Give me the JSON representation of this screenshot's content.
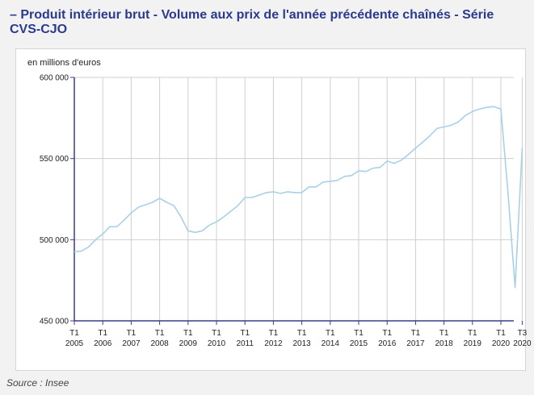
{
  "title": "– Produit intérieur brut - Volume aux prix de l'année précédente chaînés - Série CVS-CJO",
  "source": "Source : Insee",
  "colors": {
    "line": "#a8d1e7",
    "axis": "#3b3b8f",
    "grid": "#cfcfcf",
    "title": "#2a3a8e"
  },
  "chart_data": {
    "type": "line",
    "title": "– Produit intérieur brut - Volume aux prix de l'année précédente chaînés - Série CVS-CJO",
    "ylabel": "en millions d'euros",
    "xlabel": "",
    "ylim": [
      450000,
      600000
    ],
    "yticks": [
      450000,
      500000,
      550000,
      600000
    ],
    "ytick_labels": [
      "450 000",
      "500 000",
      "550 000",
      "600 000"
    ],
    "xticks": [
      {
        "q": "T1",
        "y": "2005"
      },
      {
        "q": "T1",
        "y": "2006"
      },
      {
        "q": "T1",
        "y": "2007"
      },
      {
        "q": "T1",
        "y": "2008"
      },
      {
        "q": "T1",
        "y": "2009"
      },
      {
        "q": "T1",
        "y": "2010"
      },
      {
        "q": "T1",
        "y": "2011"
      },
      {
        "q": "T1",
        "y": "2012"
      },
      {
        "q": "T1",
        "y": "2013"
      },
      {
        "q": "T1",
        "y": "2014"
      },
      {
        "q": "T1",
        "y": "2015"
      },
      {
        "q": "T1",
        "y": "2016"
      },
      {
        "q": "T1",
        "y": "2017"
      },
      {
        "q": "T1",
        "y": "2018"
      },
      {
        "q": "T1",
        "y": "2019"
      },
      {
        "q": "T1",
        "y": "2020"
      },
      {
        "q": "T3",
        "y": "2020"
      }
    ],
    "grid": true,
    "series": [
      {
        "values": [
          492500,
          493000,
          495500,
          500000,
          503500,
          508000,
          508000,
          512000,
          516500,
          520000,
          521500,
          523000,
          525500,
          523000,
          521000,
          514000,
          505500,
          504500,
          505500,
          509000,
          511000,
          514000,
          517500,
          521000,
          526000,
          526000,
          527500,
          529000,
          529500,
          528500,
          529500,
          529000,
          529000,
          532500,
          532500,
          535500,
          536000,
          536500,
          539000,
          539500,
          542500,
          542000,
          544000,
          544500,
          548500,
          547000,
          549000,
          552500,
          556500,
          560000,
          564000,
          568500,
          569500,
          570500,
          572500,
          576500,
          579000,
          580500,
          581500,
          582000,
          580500,
          529000,
          470500,
          556500
        ]
      }
    ]
  }
}
